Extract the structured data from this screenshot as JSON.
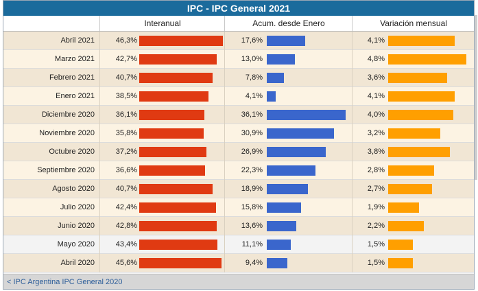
{
  "title": "IPC - IPC General 2021",
  "columns": {
    "interanual": "Interanual",
    "acumulado": "Acum. desde Enero",
    "mensual": "Variación mensual"
  },
  "footer": "< IPC Argentina IPC General 2020",
  "colors": {
    "interanual": "#e03a12",
    "acumulado": "#3a66cc",
    "mensual": "#ff9f00",
    "row_odd": "#f1e6d4",
    "row_even": "#fcf3e3",
    "row_highlight": "#f3f3f3"
  },
  "chart_data": {
    "type": "table",
    "title": "IPC - IPC General 2021",
    "categories": [
      "Abril 2021",
      "Marzo 2021",
      "Febrero 2021",
      "Enero 2021",
      "Diciembre 2020",
      "Noviembre 2020",
      "Octubre 2020",
      "Septiembre 2020",
      "Agosto 2020",
      "Julio 2020",
      "Junio 2020",
      "Mayo 2020",
      "Abril 2020"
    ],
    "series": [
      {
        "name": "Interanual",
        "values": [
          46.3,
          42.7,
          40.7,
          38.5,
          36.1,
          35.8,
          37.2,
          36.6,
          40.7,
          42.4,
          42.8,
          43.4,
          45.6
        ],
        "labels": [
          "46,3%",
          "42,7%",
          "40,7%",
          "38,5%",
          "36,1%",
          "35,8%",
          "37,2%",
          "36,6%",
          "40,7%",
          "42,4%",
          "42,8%",
          "43,4%",
          "45,6%"
        ]
      },
      {
        "name": "Acum. desde Enero",
        "values": [
          17.6,
          13.0,
          7.8,
          4.1,
          36.1,
          30.9,
          26.9,
          22.3,
          18.9,
          15.8,
          13.6,
          11.1,
          9.4
        ],
        "labels": [
          "17,6%",
          "13,0%",
          "7,8%",
          "4,1%",
          "36,1%",
          "30,9%",
          "26,9%",
          "22,3%",
          "18,9%",
          "15,8%",
          "13,6%",
          "11,1%",
          "9,4%"
        ]
      },
      {
        "name": "Variación mensual",
        "values": [
          4.1,
          4.8,
          3.6,
          4.1,
          4.0,
          3.2,
          3.8,
          2.8,
          2.7,
          1.9,
          2.2,
          1.5,
          1.5
        ],
        "labels": [
          "4,1%",
          "4,8%",
          "3,6%",
          "4,1%",
          "4,0%",
          "3,2%",
          "3,8%",
          "2,8%",
          "2,7%",
          "1,9%",
          "2,2%",
          "1,5%",
          "1,5%"
        ]
      }
    ],
    "highlight_row": 11
  }
}
